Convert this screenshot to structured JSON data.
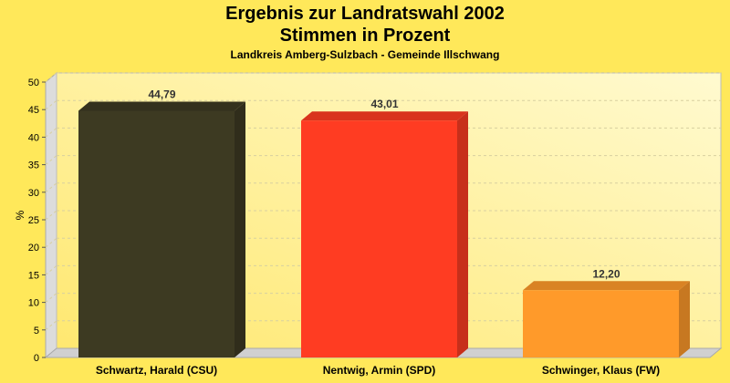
{
  "chart_data": {
    "type": "bar",
    "title": "Ergebnis zur Landratswahl 2002",
    "subtitle": "Stimmen in Prozent",
    "subtitle2": "Landkreis Amberg-Sulzbach - Gemeinde Illschwang",
    "xlabel": "",
    "ylabel": "%",
    "ylim": [
      0,
      50
    ],
    "yticks": [
      0,
      5,
      10,
      15,
      20,
      25,
      30,
      35,
      40,
      45,
      50
    ],
    "grid": true,
    "categories": [
      "Schwartz, Harald (CSU)",
      "Nentwig, Armin (SPD)",
      "Schwinger, Klaus (FW)"
    ],
    "values": [
      44.79,
      43.01,
      12.2
    ],
    "data_labels": [
      "44,79",
      "43,01",
      "12,20"
    ],
    "colors": [
      "#3d3a22",
      "#ff3c22",
      "#ff9a2a"
    ],
    "background": "#ffe85a"
  }
}
